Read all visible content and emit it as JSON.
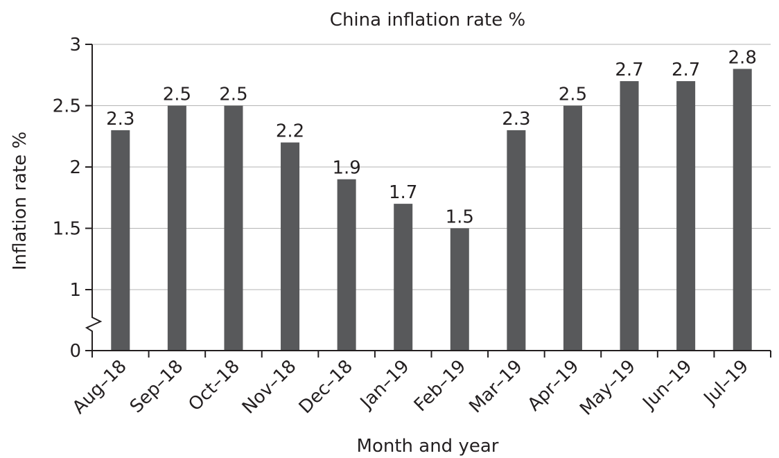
{
  "chart_data": {
    "type": "bar",
    "title": "China inflation rate %",
    "xlabel": "Month and year",
    "ylabel": "Inflation rate %",
    "categories": [
      "Aug–18",
      "Sep–18",
      "Oct–18",
      "Nov–18",
      "Dec–18",
      "Jan–19",
      "Feb–19",
      "Mar–19",
      "Apr–19",
      "May–19",
      "Jun–19",
      "Jul–19"
    ],
    "values": [
      2.3,
      2.5,
      2.5,
      2.2,
      1.9,
      1.7,
      1.5,
      2.3,
      2.5,
      2.7,
      2.7,
      2.8
    ],
    "data_labels": [
      "2.3",
      "2.5",
      "2.5",
      "2.2",
      "1.9",
      "1.7",
      "1.5",
      "2.3",
      "2.5",
      "2.7",
      "2.7",
      "2.8"
    ],
    "yticks": [
      0,
      1,
      1.5,
      2,
      2.5,
      3
    ],
    "ytick_labels": [
      "0",
      "1",
      "1.5",
      "2",
      "2.5",
      "3"
    ],
    "ylim": [
      0,
      3
    ],
    "axis_break": true,
    "grid": true,
    "legend": "none",
    "bar_color": "#58595b",
    "gridline_color": "#b3b3b3",
    "text_color": "#231f20"
  }
}
